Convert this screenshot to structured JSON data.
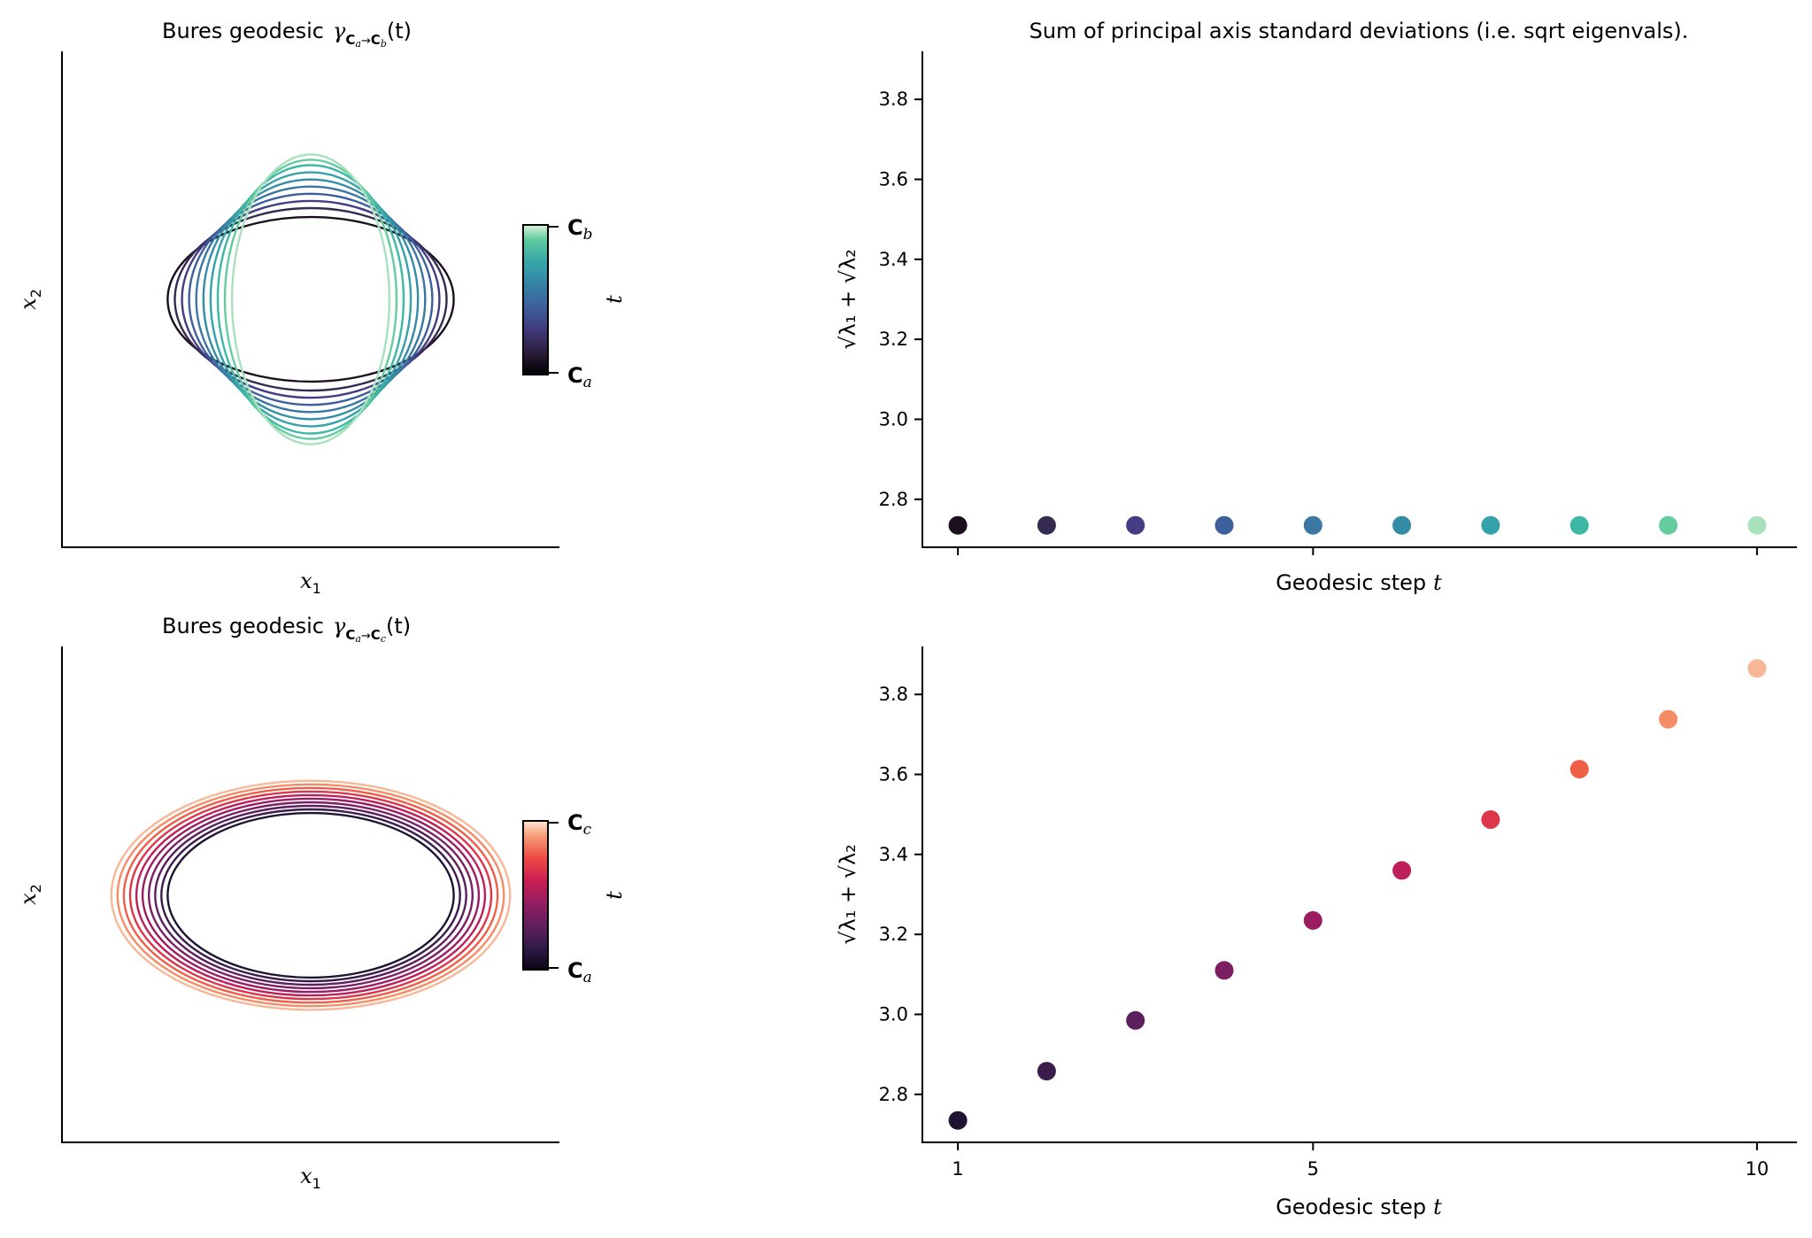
{
  "chart_data": [
    {
      "panel": "top-left",
      "type": "line",
      "title_text": "Bures geodesic",
      "title_gamma": "γ",
      "title_sub": "C",
      "title_subsub_from": "a",
      "title_subsub_to": "b",
      "title_arrow": "→",
      "title_tail": "(t)",
      "xlabel": "x",
      "xlabel_sub": "1",
      "ylabel": "x",
      "ylabel_sub": "2",
      "colorbar": {
        "label": "t",
        "top": "C",
        "top_sub": "b",
        "bottom": "C",
        "bottom_sub": "a"
      },
      "colormap": [
        "#1b0f1e",
        "#352a4f",
        "#433d84",
        "#3d5f9c",
        "#3a77a3",
        "#358ca7",
        "#34a2a8",
        "#3db8a4",
        "#65cc9f",
        "#a9e1bd"
      ],
      "ellipses": [
        {
          "rx": 1.6,
          "ry": 0.92
        },
        {
          "rx": 1.52,
          "ry": 1.02
        },
        {
          "rx": 1.44,
          "ry": 1.1
        },
        {
          "rx": 1.36,
          "ry": 1.18
        },
        {
          "rx": 1.28,
          "ry": 1.26
        },
        {
          "rx": 1.2,
          "ry": 1.34
        },
        {
          "rx": 1.12,
          "ry": 1.42
        },
        {
          "rx": 1.04,
          "ry": 1.5
        },
        {
          "rx": 0.96,
          "ry": 1.56
        },
        {
          "rx": 0.88,
          "ry": 1.62
        }
      ]
    },
    {
      "panel": "top-right",
      "type": "scatter",
      "title": "Sum of principal axis standard deviations (i.e. sqrt eigenvals).",
      "xlabel": "Geodesic step",
      "xlabel_var": "t",
      "ylabel": "√λ₁ + √λ₂",
      "ylim": [
        2.68,
        3.92
      ],
      "xlim": [
        0.6,
        10.45
      ],
      "yticks": [
        "2.8",
        "3.0",
        "3.2",
        "3.4",
        "3.6",
        "3.8"
      ],
      "xticks": [
        1,
        5,
        10
      ],
      "x": [
        1,
        2,
        3,
        4,
        5,
        6,
        7,
        8,
        9,
        10
      ],
      "y": [
        2.735,
        2.735,
        2.735,
        2.735,
        2.735,
        2.735,
        2.735,
        2.735,
        2.735,
        2.735
      ],
      "colors": [
        "#1b0f1e",
        "#352a4f",
        "#433d84",
        "#3d5f9c",
        "#3a77a3",
        "#358ca7",
        "#34a2a8",
        "#3db8a4",
        "#65cc9f",
        "#a9e1bd"
      ]
    },
    {
      "panel": "bottom-left",
      "type": "line",
      "title_text": "Bures geodesic",
      "title_gamma": "γ",
      "title_sub": "C",
      "title_subsub_from": "a",
      "title_subsub_to": "c",
      "title_arrow": "→",
      "title_tail": "(t)",
      "xlabel": "x",
      "xlabel_sub": "1",
      "ylabel": "x",
      "ylabel_sub": "2",
      "colorbar": {
        "label": "t",
        "top": "C",
        "top_sub": "c",
        "bottom": "C",
        "bottom_sub": "a"
      },
      "colormap": [
        "#1f1433",
        "#3b1d4c",
        "#5a1f5c",
        "#7b1e62",
        "#9c1c61",
        "#be1f58",
        "#dd3549",
        "#ef5f47",
        "#f58c65",
        "#f8b898"
      ],
      "ellipses": [
        {
          "rx": 1.6,
          "ry": 0.92
        },
        {
          "rx": 1.67,
          "ry": 0.96
        },
        {
          "rx": 1.74,
          "ry": 1.0
        },
        {
          "rx": 1.81,
          "ry": 1.04
        },
        {
          "rx": 1.88,
          "ry": 1.08
        },
        {
          "rx": 1.95,
          "ry": 1.12
        },
        {
          "rx": 2.02,
          "ry": 1.16
        },
        {
          "rx": 2.09,
          "ry": 1.2
        },
        {
          "rx": 2.16,
          "ry": 1.24
        },
        {
          "rx": 2.23,
          "ry": 1.28
        }
      ]
    },
    {
      "panel": "bottom-right",
      "type": "scatter",
      "xlabel": "Geodesic step",
      "xlabel_var": "t",
      "ylabel": "√λ₁ + √λ₂",
      "ylim": [
        2.68,
        3.92
      ],
      "xlim": [
        0.6,
        10.45
      ],
      "yticks": [
        "2.8",
        "3.0",
        "3.2",
        "3.4",
        "3.6",
        "3.8"
      ],
      "xticks": [
        1,
        5,
        10
      ],
      "xticklabels": [
        "1",
        "5",
        "10"
      ],
      "x": [
        1,
        2,
        3,
        4,
        5,
        6,
        7,
        8,
        9,
        10
      ],
      "y": [
        2.735,
        2.858,
        2.985,
        3.11,
        3.235,
        3.36,
        3.487,
        3.613,
        3.738,
        3.865
      ],
      "colors": [
        "#1f1433",
        "#3b1d4c",
        "#5a1f5c",
        "#7b1e62",
        "#9c1c61",
        "#be1f58",
        "#dd3549",
        "#ef5f47",
        "#f58c65",
        "#f8b898"
      ]
    }
  ]
}
